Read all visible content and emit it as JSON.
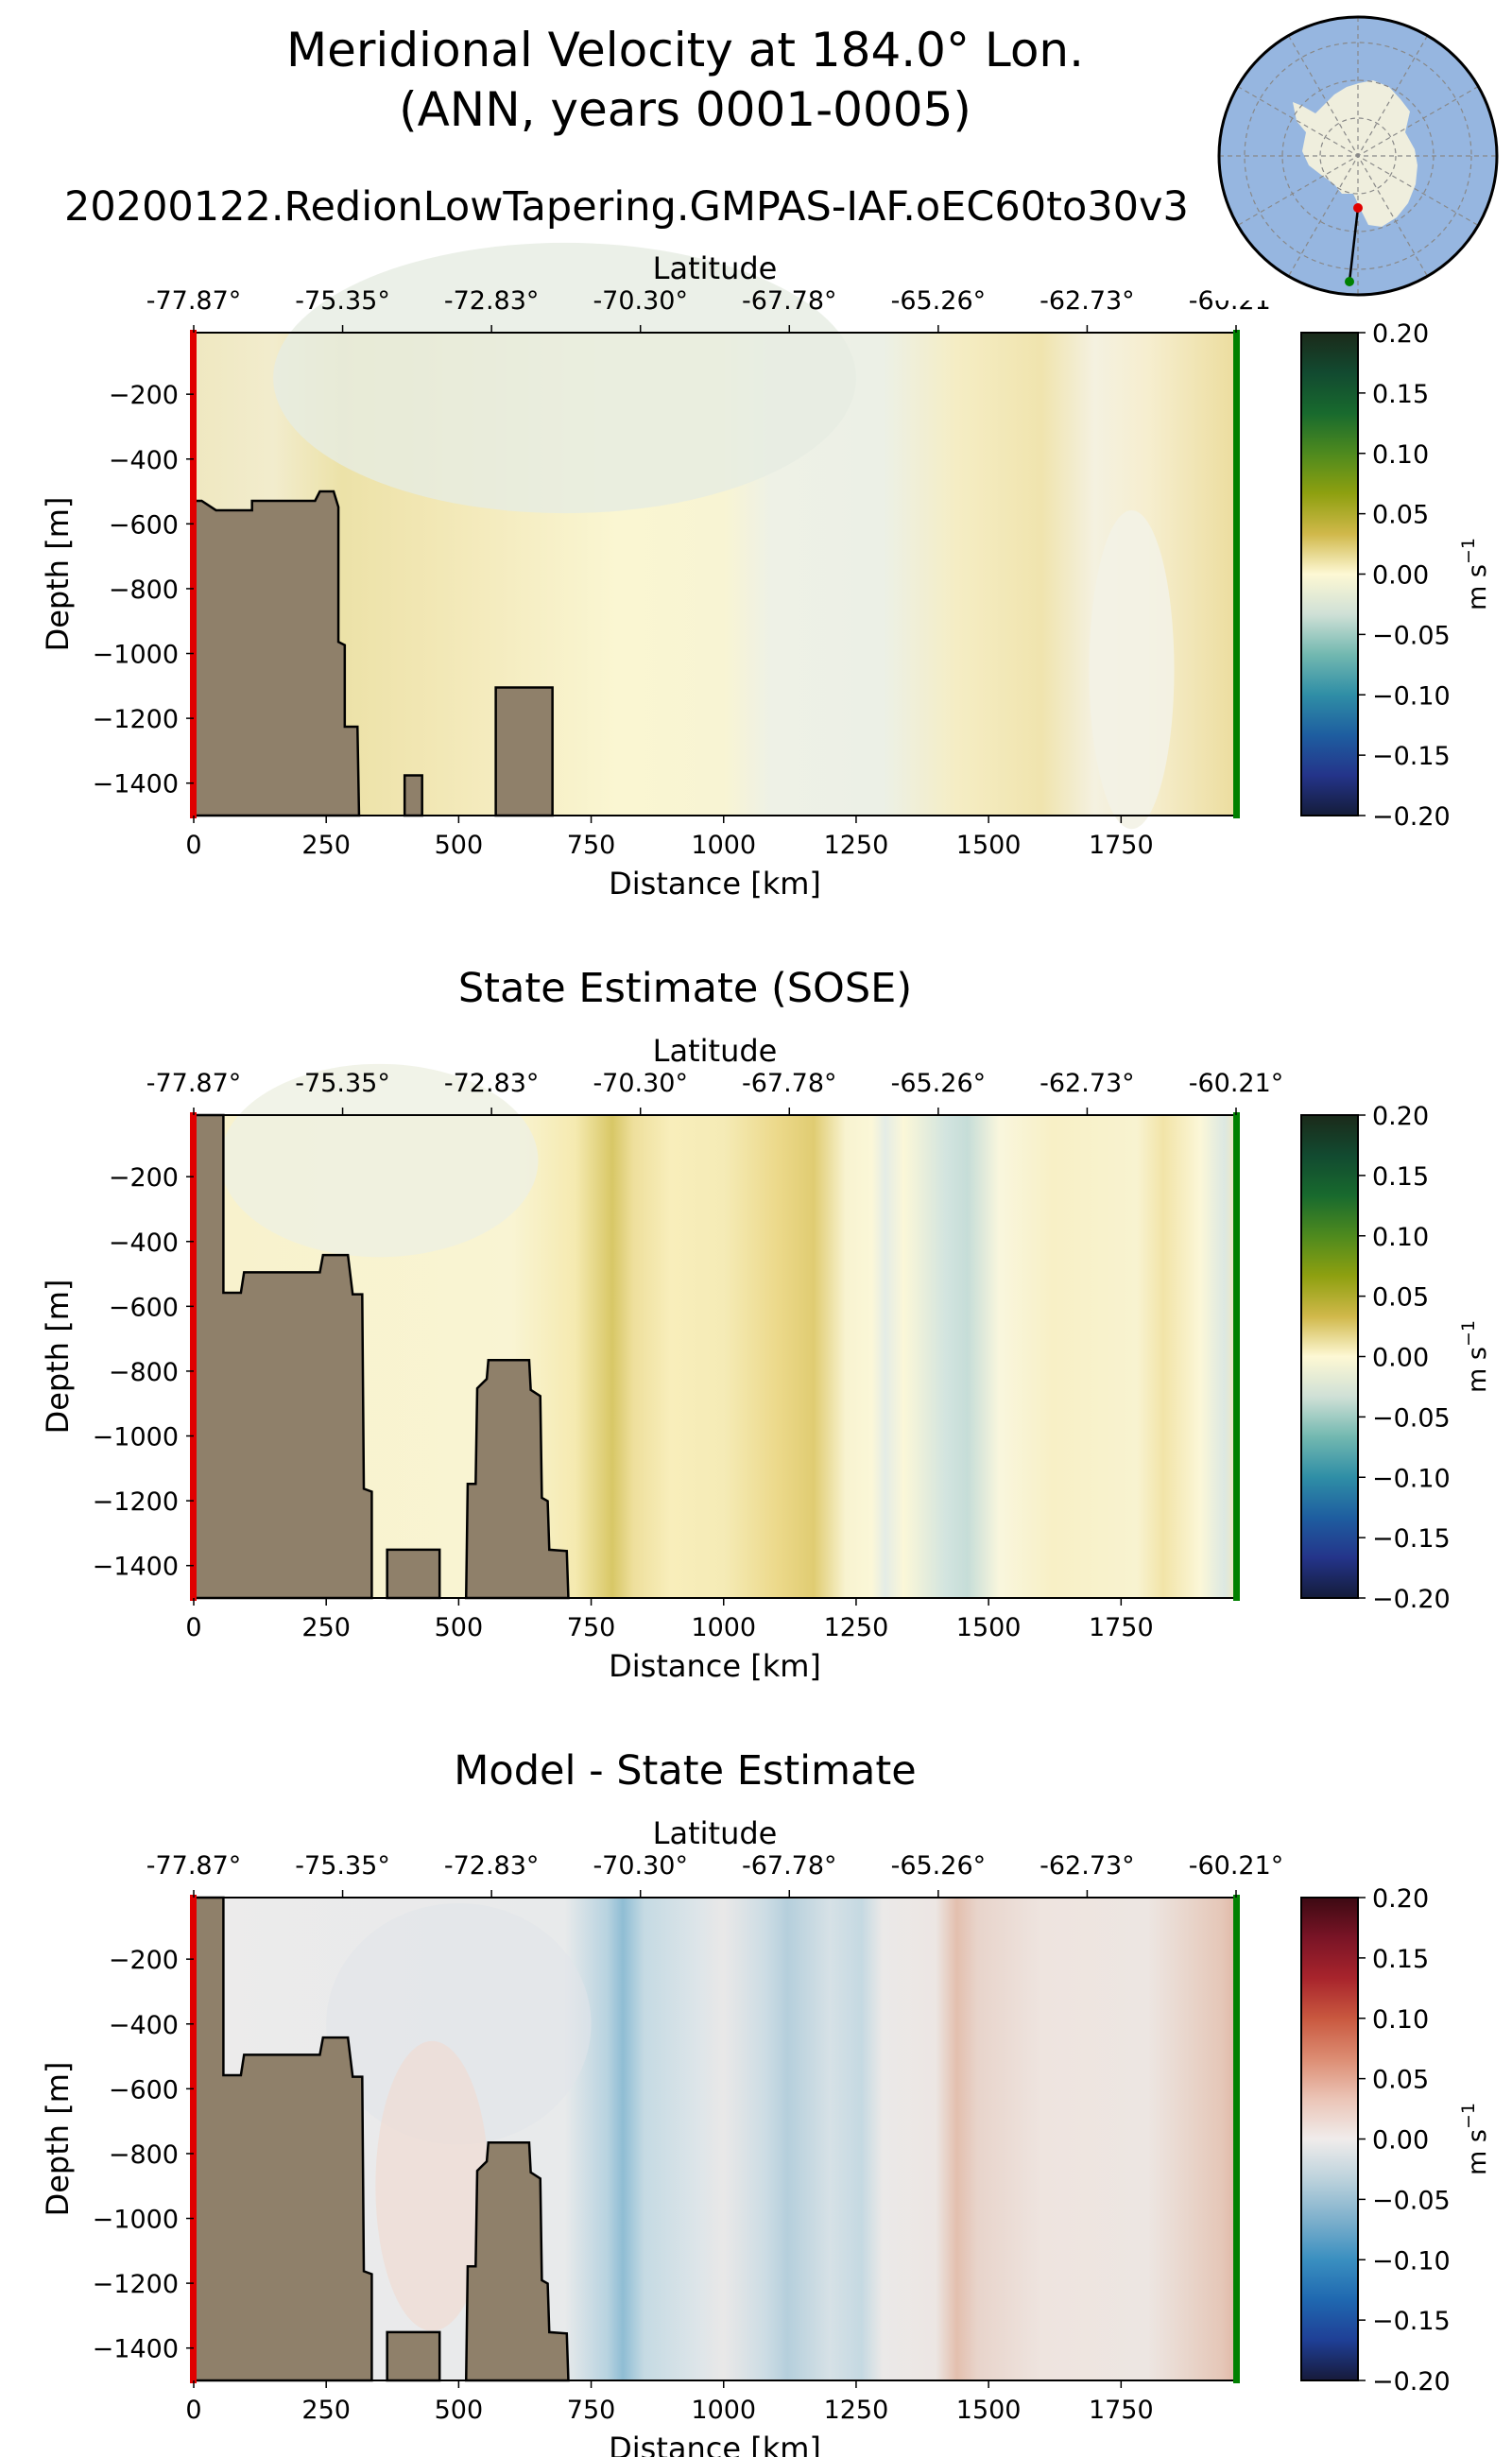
{
  "title": {
    "line1": "Meridional Velocity at 184.0° Lon.",
    "line2": "(ANN, years 0001-0005)",
    "run_name": "20200122.RedionLowTapering.GMPAS-IAF.oEC60to30v3"
  },
  "inset_map": {
    "name": "Antarctica transect location",
    "start_marker_color": "#e00000",
    "end_marker_color": "#008000"
  },
  "chart_data": [
    {
      "type": "heatmap",
      "title": "",
      "xlabel": "Distance [km]",
      "ylabel": "Depth [m]",
      "top_xlabel": "Latitude",
      "xlim": [
        0,
        1967
      ],
      "ylim": [
        -1500,
        -10
      ],
      "xticks": [
        0,
        250,
        500,
        750,
        1000,
        1250,
        1500,
        1750
      ],
      "xtick_labels": [
        "0",
        "250",
        "500",
        "750",
        "1000",
        "1250",
        "1500",
        "1750"
      ],
      "yticks": [
        -200,
        -400,
        -600,
        -800,
        -1000,
        -1200,
        -1400
      ],
      "ytick_labels": [
        "−200",
        "−400",
        "−600",
        "−800",
        "−1000",
        "−1200",
        "−1400"
      ],
      "lat_ticks_km": [
        0,
        281,
        562,
        843,
        1124,
        1405,
        1686,
        1967
      ],
      "lat_tick_labels": [
        "-77.87°",
        "-75.35°",
        "-72.83°",
        "-70.30°",
        "-67.78°",
        "-65.26°",
        "-62.73°",
        "-60.21°"
      ],
      "colorbar": {
        "colormap": "delta",
        "range": [
          -0.2,
          0.2
        ],
        "ticks": [
          0.2,
          0.15,
          0.1,
          0.05,
          0.0,
          -0.05,
          -0.1,
          -0.15,
          -0.2
        ],
        "tick_labels": [
          "0.20",
          "0.15",
          "0.10",
          "0.05",
          "0.00",
          "−0.05",
          "−0.10",
          "−0.15",
          "−0.20"
        ],
        "label": "m s",
        "label_sup": "−1"
      },
      "bathymetry": [
        [
          [
            0,
            -1500
          ],
          [
            0,
            -529
          ],
          [
            15,
            -529
          ],
          [
            42,
            -558
          ],
          [
            110,
            -558
          ],
          [
            110,
            -529
          ],
          [
            229,
            -529
          ],
          [
            238,
            -500
          ],
          [
            264,
            -500
          ],
          [
            273,
            -548
          ],
          [
            273,
            -964
          ],
          [
            285,
            -974
          ],
          [
            285,
            -1226
          ],
          [
            309,
            -1226
          ],
          [
            312,
            -1500
          ]
        ],
        [
          [
            398,
            -1500
          ],
          [
            398,
            -1376
          ],
          [
            431,
            -1376
          ],
          [
            431,
            -1500
          ]
        ],
        [
          [
            570,
            -1500
          ],
          [
            570,
            -1105
          ],
          [
            677,
            -1105
          ],
          [
            677,
            -1500
          ]
        ]
      ]
    },
    {
      "type": "heatmap",
      "title": "State Estimate (SOSE)",
      "xlabel": "Distance [km]",
      "ylabel": "Depth [m]",
      "top_xlabel": "Latitude",
      "xlim": [
        0,
        1967
      ],
      "ylim": [
        -1500,
        -10
      ],
      "xticks": [
        0,
        250,
        500,
        750,
        1000,
        1250,
        1500,
        1750
      ],
      "xtick_labels": [
        "0",
        "250",
        "500",
        "750",
        "1000",
        "1250",
        "1500",
        "1750"
      ],
      "yticks": [
        -200,
        -400,
        -600,
        -800,
        -1000,
        -1200,
        -1400
      ],
      "ytick_labels": [
        "−200",
        "−400",
        "−600",
        "−800",
        "−1000",
        "−1200",
        "−1400"
      ],
      "lat_ticks_km": [
        0,
        281,
        562,
        843,
        1124,
        1405,
        1686,
        1967
      ],
      "lat_tick_labels": [
        "-77.87°",
        "-75.35°",
        "-72.83°",
        "-70.30°",
        "-67.78°",
        "-65.26°",
        "-62.73°",
        "-60.21°"
      ],
      "colorbar": {
        "colormap": "delta",
        "range": [
          -0.2,
          0.2
        ],
        "ticks": [
          0.2,
          0.15,
          0.1,
          0.05,
          0.0,
          -0.05,
          -0.1,
          -0.15,
          -0.2
        ],
        "tick_labels": [
          "0.20",
          "0.15",
          "0.10",
          "0.05",
          "0.00",
          "−0.05",
          "−0.10",
          "−0.15",
          "−0.20"
        ],
        "label": "m s",
        "label_sup": "−1"
      },
      "bathymetry": [
        [
          [
            0,
            -1500
          ],
          [
            0,
            -10
          ],
          [
            56,
            -10
          ],
          [
            56,
            -558
          ],
          [
            89,
            -558
          ],
          [
            95,
            -495
          ],
          [
            238,
            -495
          ],
          [
            244,
            -442
          ],
          [
            291,
            -442
          ],
          [
            300,
            -563
          ],
          [
            318,
            -563
          ],
          [
            321,
            -1163
          ],
          [
            336,
            -1172
          ],
          [
            336,
            -1500
          ]
        ],
        [
          [
            365,
            -1500
          ],
          [
            365,
            -1351
          ],
          [
            464,
            -1351
          ],
          [
            464,
            -1500
          ]
        ],
        [
          [
            514,
            -1500
          ],
          [
            517,
            -1148
          ],
          [
            532,
            -1148
          ],
          [
            535,
            -853
          ],
          [
            553,
            -824
          ],
          [
            556,
            -766
          ],
          [
            633,
            -766
          ],
          [
            636,
            -858
          ],
          [
            654,
            -877
          ],
          [
            657,
            -1191
          ],
          [
            668,
            -1201
          ],
          [
            671,
            -1351
          ],
          [
            704,
            -1355
          ],
          [
            707,
            -1500
          ]
        ]
      ]
    },
    {
      "type": "heatmap",
      "title": "Model - State Estimate",
      "xlabel": "Distance [km]",
      "ylabel": "Depth [m]",
      "top_xlabel": "Latitude",
      "xlim": [
        0,
        1967
      ],
      "ylim": [
        -1500,
        -10
      ],
      "xticks": [
        0,
        250,
        500,
        750,
        1000,
        1250,
        1500,
        1750
      ],
      "xtick_labels": [
        "0",
        "250",
        "500",
        "750",
        "1000",
        "1250",
        "1500",
        "1750"
      ],
      "yticks": [
        -200,
        -400,
        -600,
        -800,
        -1000,
        -1200,
        -1400
      ],
      "ytick_labels": [
        "−200",
        "−400",
        "−600",
        "−800",
        "−1000",
        "−1200",
        "−1400"
      ],
      "lat_ticks_km": [
        0,
        281,
        562,
        843,
        1124,
        1405,
        1686,
        1967
      ],
      "lat_tick_labels": [
        "-77.87°",
        "-75.35°",
        "-72.83°",
        "-70.30°",
        "-67.78°",
        "-65.26°",
        "-62.73°",
        "-60.21°"
      ],
      "colorbar": {
        "colormap": "balance",
        "range": [
          -0.2,
          0.2
        ],
        "ticks": [
          0.2,
          0.15,
          0.1,
          0.05,
          0.0,
          -0.05,
          -0.1,
          -0.15,
          -0.2
        ],
        "tick_labels": [
          "0.20",
          "0.15",
          "0.10",
          "0.05",
          "0.00",
          "−0.05",
          "−0.10",
          "−0.15",
          "−0.20"
        ],
        "label": "m s",
        "label_sup": "−1"
      },
      "bathymetry": [
        [
          [
            0,
            -1500
          ],
          [
            0,
            -10
          ],
          [
            56,
            -10
          ],
          [
            56,
            -558
          ],
          [
            89,
            -558
          ],
          [
            95,
            -495
          ],
          [
            238,
            -495
          ],
          [
            244,
            -442
          ],
          [
            291,
            -442
          ],
          [
            300,
            -563
          ],
          [
            318,
            -563
          ],
          [
            321,
            -1163
          ],
          [
            336,
            -1172
          ],
          [
            336,
            -1500
          ]
        ],
        [
          [
            365,
            -1500
          ],
          [
            365,
            -1351
          ],
          [
            464,
            -1351
          ],
          [
            464,
            -1500
          ]
        ],
        [
          [
            514,
            -1500
          ],
          [
            517,
            -1148
          ],
          [
            532,
            -1148
          ],
          [
            535,
            -853
          ],
          [
            553,
            -824
          ],
          [
            556,
            -766
          ],
          [
            633,
            -766
          ],
          [
            636,
            -858
          ],
          [
            654,
            -877
          ],
          [
            657,
            -1191
          ],
          [
            668,
            -1201
          ],
          [
            671,
            -1351
          ],
          [
            704,
            -1355
          ],
          [
            707,
            -1500
          ]
        ]
      ]
    }
  ]
}
